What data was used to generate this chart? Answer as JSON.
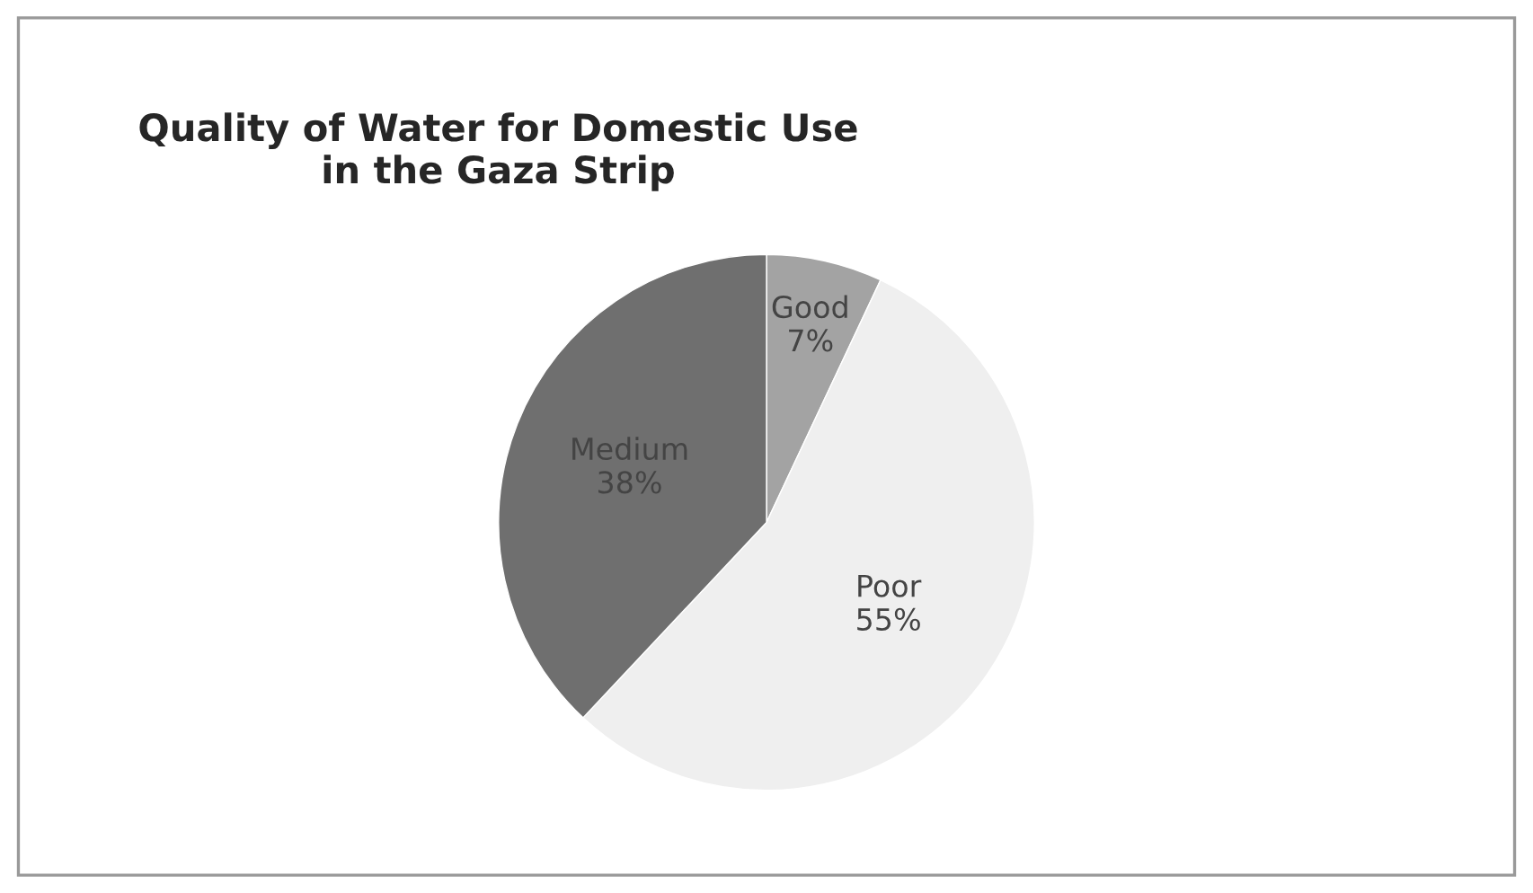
{
  "chart_data": {
    "type": "pie",
    "title": "Quality of Water for Domestic Use\nin the Gaza Strip",
    "categories": [
      "Good",
      "Poor",
      "Medium"
    ],
    "values": [
      7,
      55,
      38
    ],
    "value_labels": [
      "7%",
      "55%",
      "38%"
    ],
    "colors": [
      "#a3a3a3",
      "#efefef",
      "#6f6f6f"
    ],
    "legend": false
  }
}
